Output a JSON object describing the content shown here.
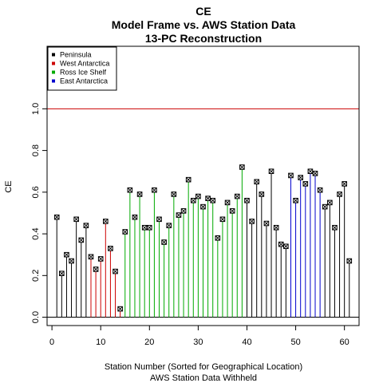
{
  "chart_data": {
    "type": "scatter",
    "title_lines": [
      "CE",
      "Model Frame vs. AWS Station Data",
      "13-PC Reconstruction"
    ],
    "xlabel_lines": [
      "Station Number (Sorted for Geographical Location)",
      "AWS Station Data Withheld"
    ],
    "ylabel": "CE",
    "xlim": [
      -1,
      63
    ],
    "ylim": [
      -0.04,
      1.3
    ],
    "xticks": [
      0,
      10,
      20,
      30,
      40,
      50,
      60
    ],
    "xtick_labels": [
      "0",
      "10",
      "20",
      "30",
      "40",
      "50",
      "60"
    ],
    "yticks": [
      0.0,
      0.2,
      0.4,
      0.6,
      0.8,
      1.0
    ],
    "ytick_labels": [
      "0.0",
      "0.2",
      "0.4",
      "0.6",
      "0.8",
      "1.0"
    ],
    "reference_line": {
      "y": 1.0,
      "color": "#cc0000"
    },
    "legend_position": "top-left",
    "legend": [
      {
        "label": "Peninsula",
        "color": "#000000"
      },
      {
        "label": "West Antarctica",
        "color": "#cc0000"
      },
      {
        "label": "Ross Ice Shelf",
        "color": "#00aa00"
      },
      {
        "label": "East Antarctica",
        "color": "#0000cc"
      }
    ],
    "x": [
      1,
      2,
      3,
      4,
      5,
      6,
      7,
      8,
      9,
      10,
      11,
      12,
      13,
      14,
      15,
      16,
      17,
      18,
      19,
      20,
      21,
      22,
      23,
      24,
      25,
      26,
      27,
      28,
      29,
      30,
      31,
      32,
      33,
      34,
      35,
      36,
      37,
      38,
      39,
      40,
      41,
      42,
      43,
      44,
      45,
      46,
      47,
      48,
      49,
      50,
      51,
      52,
      53,
      54,
      55,
      56,
      57,
      58,
      59,
      60,
      61
    ],
    "values": [
      0.48,
      0.21,
      0.3,
      0.27,
      0.47,
      0.37,
      0.44,
      0.29,
      0.23,
      0.28,
      0.46,
      0.33,
      0.22,
      0.04,
      0.41,
      0.61,
      0.48,
      0.59,
      0.43,
      0.43,
      0.61,
      0.47,
      0.36,
      0.44,
      0.59,
      0.49,
      0.51,
      0.66,
      0.56,
      0.58,
      0.53,
      0.57,
      0.56,
      0.38,
      0.47,
      0.55,
      0.51,
      0.58,
      0.72,
      0.56,
      0.46,
      0.65,
      0.59,
      0.45,
      0.7,
      0.43,
      0.35,
      0.34,
      0.68,
      0.56,
      0.67,
      0.64,
      0.7,
      0.69,
      0.61,
      0.53,
      0.55,
      0.43,
      0.59,
      0.64,
      0.27
    ],
    "region_index": [
      0,
      0,
      0,
      0,
      0,
      0,
      0,
      1,
      1,
      1,
      1,
      1,
      1,
      1,
      2,
      2,
      2,
      2,
      2,
      2,
      2,
      2,
      2,
      2,
      2,
      2,
      2,
      2,
      2,
      2,
      2,
      2,
      2,
      2,
      2,
      2,
      2,
      2,
      2,
      0,
      0,
      0,
      0,
      0,
      0,
      0,
      0,
      0,
      3,
      3,
      3,
      3,
      3,
      3,
      3,
      0,
      0,
      0,
      0,
      0,
      0
    ]
  }
}
